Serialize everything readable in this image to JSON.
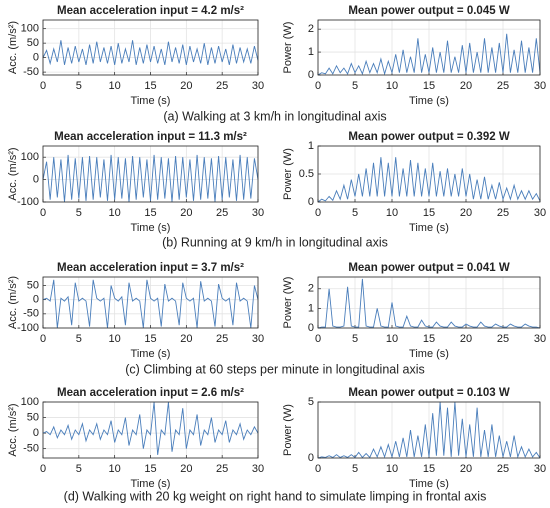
{
  "captions": [
    "(a) Walking at 3 km/h in longitudinal axis",
    "(b) Running at 9 km/h in longitudinal axis",
    "(c) Climbing at 60 steps per minute in longitudinal axis",
    "(d) Walking with 20 kg weight on right hand to simulate limping in frontal axis"
  ],
  "chart_data": [
    {
      "type": "line",
      "title": "Mean acceleration input = 4.2 m/s²",
      "xlabel": "Time (s)",
      "ylabel": "Acc. (m/s²)",
      "color": "#4a7ebb",
      "grid": true,
      "xlim": [
        0,
        30
      ],
      "xticks": [
        0,
        5,
        10,
        15,
        20,
        25,
        30
      ],
      "ylim": [
        -60,
        130
      ],
      "yticks": [
        -50,
        0,
        50,
        100
      ],
      "x": [
        0,
        0.5,
        1,
        1.5,
        2,
        2.5,
        3,
        3.5,
        4,
        4.5,
        5,
        5.5,
        6,
        6.5,
        7,
        7.5,
        8,
        8.5,
        9,
        9.5,
        10,
        10.5,
        11,
        11.5,
        12,
        12.5,
        13,
        13.5,
        14,
        14.5,
        15,
        15.5,
        16,
        16.5,
        17,
        17.5,
        18,
        18.5,
        19,
        19.5,
        20,
        20.5,
        21,
        21.5,
        22,
        22.5,
        23,
        23.5,
        24,
        24.5,
        25,
        25.5,
        26,
        26.5,
        27,
        27.5,
        28,
        28.5,
        29,
        29.5,
        30
      ],
      "values": [
        0,
        25,
        -20,
        30,
        -15,
        60,
        -25,
        35,
        -20,
        40,
        -15,
        30,
        -25,
        45,
        -20,
        55,
        -15,
        35,
        -20,
        40,
        -25,
        50,
        -20,
        30,
        -15,
        60,
        -25,
        35,
        -20,
        45,
        -15,
        40,
        -20,
        30,
        -25,
        55,
        -15,
        35,
        -20,
        45,
        -25,
        40,
        -15,
        30,
        -20,
        50,
        -25,
        35,
        -20,
        40,
        -15,
        30,
        -25,
        45,
        -20,
        35,
        -15,
        30,
        -20,
        40,
        -10
      ]
    },
    {
      "type": "line",
      "title": "Mean power output = 0.045 W",
      "xlabel": "Time (s)",
      "ylabel": "Power (W)",
      "color": "#4a7ebb",
      "grid": true,
      "xlim": [
        0,
        30
      ],
      "xticks": [
        0,
        5,
        10,
        15,
        20,
        25,
        30
      ],
      "ylim": [
        0,
        2.4
      ],
      "yticks": [
        0,
        1,
        2
      ],
      "x": [
        0,
        0.5,
        1,
        1.5,
        2,
        2.5,
        3,
        3.5,
        4,
        4.5,
        5,
        5.5,
        6,
        6.5,
        7,
        7.5,
        8,
        8.5,
        9,
        9.5,
        10,
        10.5,
        11,
        11.5,
        12,
        12.5,
        13,
        13.5,
        14,
        14.5,
        15,
        15.5,
        16,
        16.5,
        17,
        17.5,
        18,
        18.5,
        19,
        19.5,
        20,
        20.5,
        21,
        21.5,
        22,
        22.5,
        23,
        23.5,
        24,
        24.5,
        25,
        25.5,
        26,
        26.5,
        27,
        27.5,
        28,
        28.5,
        29,
        29.5,
        30
      ],
      "values": [
        0,
        0.1,
        0.05,
        0.3,
        0.05,
        0.4,
        0.1,
        0.3,
        0.05,
        0.5,
        0.1,
        0.4,
        0.05,
        0.6,
        0.1,
        0.5,
        0.1,
        0.7,
        0.05,
        0.6,
        0.1,
        0.9,
        0.1,
        1.1,
        0.1,
        0.8,
        0.1,
        1.6,
        0.1,
        0.9,
        0.1,
        1.2,
        0.1,
        1.0,
        0.1,
        1.5,
        0.1,
        0.8,
        0.1,
        1.3,
        0.1,
        1.4,
        0.1,
        1.0,
        0.1,
        1.6,
        0.1,
        1.2,
        0.1,
        1.4,
        0.1,
        1.8,
        0.1,
        1.1,
        0.1,
        1.5,
        0.1,
        1.2,
        0.1,
        1.6,
        0.1
      ]
    },
    {
      "type": "line",
      "title": "Mean acceleration input = 11.3 m/s²",
      "xlabel": "Time (s)",
      "ylabel": "Acc. (m/s²)",
      "color": "#4a7ebb",
      "grid": true,
      "xlim": [
        0,
        30
      ],
      "xticks": [
        0,
        5,
        10,
        15,
        20,
        25,
        30
      ],
      "ylim": [
        -100,
        150
      ],
      "yticks": [
        -100,
        0,
        100
      ],
      "x": [
        0,
        0.5,
        1,
        1.5,
        2,
        2.5,
        3,
        3.5,
        4,
        4.5,
        5,
        5.5,
        6,
        6.5,
        7,
        7.5,
        8,
        8.5,
        9,
        9.5,
        10,
        10.5,
        11,
        11.5,
        12,
        12.5,
        13,
        13.5,
        14,
        14.5,
        15,
        15.5,
        16,
        16.5,
        17,
        17.5,
        18,
        18.5,
        19,
        19.5,
        20,
        20.5,
        21,
        21.5,
        22,
        22.5,
        23,
        23.5,
        24,
        24.5,
        25,
        25.5,
        26,
        26.5,
        27,
        27.5,
        28,
        28.5,
        29,
        29.5,
        30
      ],
      "values": [
        0,
        80,
        -90,
        100,
        -80,
        90,
        -100,
        110,
        -90,
        95,
        -85,
        100,
        -95,
        105,
        -90,
        100,
        -80,
        90,
        -95,
        110,
        -90,
        100,
        -85,
        95,
        -100,
        105,
        -90,
        100,
        -80,
        90,
        -95,
        110,
        -90,
        100,
        -85,
        95,
        -100,
        105,
        -90,
        100,
        -80,
        90,
        -95,
        110,
        -90,
        100,
        -85,
        95,
        -100,
        105,
        -90,
        100,
        -80,
        90,
        -95,
        110,
        -90,
        100,
        -85,
        95,
        0
      ]
    },
    {
      "type": "line",
      "title": "Mean power output = 0.392 W",
      "xlabel": "Time (s)",
      "ylabel": "Power (W)",
      "color": "#4a7ebb",
      "grid": true,
      "xlim": [
        0,
        30
      ],
      "xticks": [
        0,
        5,
        10,
        15,
        20,
        25,
        30
      ],
      "ylim": [
        0,
        1
      ],
      "yticks": [
        0,
        0.5,
        1
      ],
      "x": [
        0,
        0.5,
        1,
        1.5,
        2,
        2.5,
        3,
        3.5,
        4,
        4.5,
        5,
        5.5,
        6,
        6.5,
        7,
        7.5,
        8,
        8.5,
        9,
        9.5,
        10,
        10.5,
        11,
        11.5,
        12,
        12.5,
        13,
        13.5,
        14,
        14.5,
        15,
        15.5,
        16,
        16.5,
        17,
        17.5,
        18,
        18.5,
        19,
        19.5,
        20,
        20.5,
        21,
        21.5,
        22,
        22.5,
        23,
        23.5,
        24,
        24.5,
        25,
        25.5,
        26,
        26.5,
        27,
        27.5,
        28,
        28.5,
        29,
        29.5,
        30
      ],
      "values": [
        0,
        0.05,
        0.02,
        0.1,
        0.03,
        0.2,
        0.05,
        0.3,
        0.05,
        0.4,
        0.1,
        0.5,
        0.1,
        0.6,
        0.1,
        0.7,
        0.1,
        0.8,
        0.1,
        0.7,
        0.1,
        0.8,
        0.1,
        0.6,
        0.1,
        0.75,
        0.1,
        0.7,
        0.1,
        0.6,
        0.1,
        0.7,
        0.1,
        0.55,
        0.1,
        0.6,
        0.1,
        0.5,
        0.1,
        0.6,
        0.1,
        0.5,
        0.05,
        0.4,
        0.05,
        0.45,
        0.05,
        0.3,
        0.05,
        0.35,
        0.05,
        0.25,
        0.05,
        0.3,
        0.05,
        0.2,
        0.05,
        0.2,
        0.05,
        0.15,
        0.02
      ]
    },
    {
      "type": "line",
      "title": "Mean acceleration input = 3.7 m/s²",
      "xlabel": "Time (s)",
      "ylabel": "Acc. (m/s²)",
      "color": "#4a7ebb",
      "grid": true,
      "xlim": [
        0,
        30
      ],
      "xticks": [
        0,
        5,
        10,
        15,
        20,
        25,
        30
      ],
      "ylim": [
        -100,
        80
      ],
      "yticks": [
        -100,
        -50,
        0,
        50
      ],
      "x": [
        0,
        0.5,
        1,
        1.5,
        2,
        2.5,
        3,
        3.5,
        4,
        4.5,
        5,
        5.5,
        6,
        6.5,
        7,
        7.5,
        8,
        8.5,
        9,
        9.5,
        10,
        10.5,
        11,
        11.5,
        12,
        12.5,
        13,
        13.5,
        14,
        14.5,
        15,
        15.5,
        16,
        16.5,
        17,
        17.5,
        18,
        18.5,
        19,
        19.5,
        20,
        20.5,
        21,
        21.5,
        22,
        22.5,
        23,
        23.5,
        24,
        24.5,
        25,
        25.5,
        26,
        26.5,
        27,
        27.5,
        28,
        28.5,
        29,
        29.5,
        30
      ],
      "values": [
        0,
        5,
        -5,
        70,
        -100,
        5,
        -5,
        10,
        -90,
        60,
        -5,
        5,
        -5,
        -95,
        70,
        5,
        -5,
        5,
        -100,
        50,
        5,
        -5,
        10,
        -90,
        60,
        -5,
        5,
        -5,
        -100,
        70,
        5,
        -5,
        5,
        -95,
        55,
        -5,
        5,
        -5,
        -90,
        60,
        5,
        -5,
        5,
        -100,
        65,
        -5,
        5,
        -5,
        -95,
        55,
        5,
        -5,
        5,
        -90,
        60,
        -5,
        5,
        -5,
        -100,
        50,
        0
      ]
    },
    {
      "type": "line",
      "title": "Mean power output = 0.041 W",
      "xlabel": "Time (s)",
      "ylabel": "Power (W)",
      "color": "#4a7ebb",
      "grid": true,
      "xlim": [
        0,
        30
      ],
      "xticks": [
        0,
        5,
        10,
        15,
        20,
        25,
        30
      ],
      "ylim": [
        0,
        2.6
      ],
      "yticks": [
        0,
        1,
        2
      ],
      "x": [
        0,
        0.5,
        1,
        1.5,
        2,
        2.5,
        3,
        3.5,
        4,
        4.5,
        5,
        5.5,
        6,
        6.5,
        7,
        7.5,
        8,
        8.5,
        9,
        9.5,
        10,
        10.5,
        11,
        11.5,
        12,
        12.5,
        13,
        13.5,
        14,
        14.5,
        15,
        15.5,
        16,
        16.5,
        17,
        17.5,
        18,
        18.5,
        19,
        19.5,
        20,
        20.5,
        21,
        21.5,
        22,
        22.5,
        23,
        23.5,
        24,
        24.5,
        25,
        25.5,
        26,
        26.5,
        27,
        27.5,
        28,
        28.5,
        29,
        29.5,
        30
      ],
      "values": [
        0,
        0.05,
        0.05,
        2.0,
        0.1,
        0.05,
        0.05,
        0.1,
        2.1,
        0.1,
        0.05,
        0.05,
        2.5,
        0.1,
        0.05,
        0.05,
        1.0,
        0.1,
        0.05,
        0.05,
        1.3,
        0.1,
        0.05,
        0.05,
        0.6,
        0.1,
        0.05,
        0.05,
        0.4,
        0.1,
        0.05,
        0.05,
        0.3,
        0.1,
        0.05,
        0.05,
        0.3,
        0.1,
        0.05,
        0.05,
        0.2,
        0.1,
        0.05,
        0.05,
        0.3,
        0.1,
        0.05,
        0.05,
        0.2,
        0.1,
        0.05,
        0.05,
        0.2,
        0.1,
        0.05,
        0.05,
        0.2,
        0.1,
        0.05,
        0.05,
        0
      ]
    },
    {
      "type": "line",
      "title": "Mean acceleration input = 2.6 m/s²",
      "xlabel": "Time (s)",
      "ylabel": "Acc. (m/s²)",
      "color": "#4a7ebb",
      "grid": true,
      "xlim": [
        0,
        30
      ],
      "xticks": [
        0,
        5,
        10,
        15,
        20,
        25,
        30
      ],
      "ylim": [
        -80,
        100
      ],
      "yticks": [
        -50,
        0,
        50,
        100
      ],
      "x": [
        0,
        0.5,
        1,
        1.5,
        2,
        2.5,
        3,
        3.5,
        4,
        4.5,
        5,
        5.5,
        6,
        6.5,
        7,
        7.5,
        8,
        8.5,
        9,
        9.5,
        10,
        10.5,
        11,
        11.5,
        12,
        12.5,
        13,
        13.5,
        14,
        14.5,
        15,
        15.5,
        16,
        16.5,
        17,
        17.5,
        18,
        18.5,
        19,
        19.5,
        20,
        20.5,
        21,
        21.5,
        22,
        22.5,
        23,
        23.5,
        24,
        24.5,
        25,
        25.5,
        26,
        26.5,
        27,
        27.5,
        28,
        28.5,
        29,
        29.5,
        30
      ],
      "values": [
        0,
        5,
        -5,
        20,
        -15,
        10,
        -5,
        25,
        -20,
        10,
        -5,
        30,
        -25,
        10,
        -5,
        30,
        -20,
        10,
        -5,
        40,
        -30,
        10,
        -5,
        50,
        -40,
        10,
        -5,
        60,
        -50,
        10,
        -5,
        100,
        -70,
        10,
        -5,
        100,
        -60,
        10,
        -5,
        80,
        -50,
        10,
        -5,
        60,
        -40,
        10,
        -5,
        50,
        -30,
        10,
        -5,
        40,
        -30,
        10,
        -5,
        30,
        -20,
        10,
        -5,
        20,
        0
      ]
    },
    {
      "type": "line",
      "title": "Mean power output = 0.103 W",
      "xlabel": "Time (s)",
      "ylabel": "Power (W)",
      "color": "#4a7ebb",
      "grid": true,
      "xlim": [
        0,
        30
      ],
      "xticks": [
        0,
        5,
        10,
        15,
        20,
        25,
        30
      ],
      "ylim": [
        0,
        5
      ],
      "yticks": [
        0,
        5
      ],
      "x": [
        0,
        0.5,
        1,
        1.5,
        2,
        2.5,
        3,
        3.5,
        4,
        4.5,
        5,
        5.5,
        6,
        6.5,
        7,
        7.5,
        8,
        8.5,
        9,
        9.5,
        10,
        10.5,
        11,
        11.5,
        12,
        12.5,
        13,
        13.5,
        14,
        14.5,
        15,
        15.5,
        16,
        16.5,
        17,
        17.5,
        18,
        18.5,
        19,
        19.5,
        20,
        20.5,
        21,
        21.5,
        22,
        22.5,
        23,
        23.5,
        24,
        24.5,
        25,
        25.5,
        26,
        26.5,
        27,
        27.5,
        28,
        28.5,
        29,
        29.5,
        30
      ],
      "values": [
        0,
        0.1,
        0.05,
        0.2,
        0.05,
        0.3,
        0.05,
        0.2,
        0.05,
        0.3,
        0.05,
        0.5,
        0.05,
        0.4,
        0.05,
        0.8,
        0.1,
        1.0,
        0.1,
        1.2,
        0.1,
        1.5,
        0.1,
        1.8,
        0.1,
        2.5,
        0.1,
        2.0,
        0.1,
        3.0,
        0.1,
        4.0,
        0.2,
        5.0,
        0.2,
        4.5,
        0.1,
        5.0,
        0.2,
        3.5,
        0.1,
        3.0,
        0.1,
        4.5,
        0.1,
        2.5,
        0.1,
        3.0,
        0.1,
        2.0,
        0.1,
        1.5,
        0.1,
        2.0,
        0.1,
        1.0,
        0.1,
        0.8,
        0.1,
        0.5,
        0
      ]
    }
  ]
}
